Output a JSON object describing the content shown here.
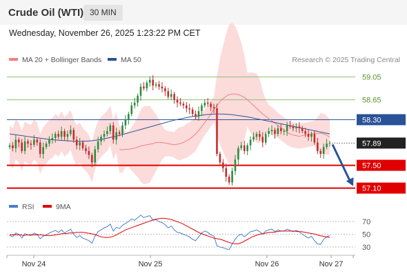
{
  "header": {
    "title": "Crude Oil (WTI)",
    "timeframe": "30 MIN",
    "timestamp": "Wednesday, November 26, 2025 1:23:22 PM CET"
  },
  "legend": {
    "items": [
      {
        "label": "MA 20 + Bollinger Bands",
        "color": "#f08080"
      },
      {
        "label": "MA 50",
        "color": "#2a5298"
      }
    ]
  },
  "credit": "Research © 2025 Trading Central",
  "chart_data": {
    "type": "candlestick",
    "y_range": [
      56.95,
      59.25
    ],
    "x_labels": [
      "Nov 24",
      "Nov 25",
      "Nov 26",
      "Nov 27"
    ],
    "last_price": 57.89,
    "levels": [
      {
        "value": 59.05,
        "label": "59.05",
        "kind": "resistance-minor",
        "color": "#8dc26f"
      },
      {
        "value": 58.65,
        "label": "58.65",
        "kind": "resistance-minor",
        "color": "#8dc26f"
      },
      {
        "value": 58.3,
        "label": "58.30",
        "kind": "pivot",
        "color": "#2a5298"
      },
      {
        "value": 57.5,
        "label": "57.50",
        "kind": "support",
        "color": "#e00000"
      },
      {
        "value": 57.1,
        "label": "57.10",
        "kind": "support",
        "color": "#e00000"
      }
    ],
    "series_close": [
      57.85,
      57.8,
      57.95,
      57.9,
      57.75,
      57.92,
      57.88,
      57.86,
      57.95,
      57.9,
      57.7,
      57.82,
      57.88,
      57.95,
      57.98,
      58.05,
      58.0,
      58.1,
      58.0,
      58.05,
      58.12,
      57.95,
      57.85,
      57.9,
      57.8,
      57.75,
      57.68,
      57.55,
      57.78,
      57.92,
      58.0,
      58.05,
      58.1,
      58.2,
      57.95,
      58.08,
      58.05,
      58.2,
      58.3,
      58.4,
      58.55,
      58.6,
      58.72,
      58.88,
      58.85,
      58.95,
      59.0,
      58.9,
      58.92,
      58.88,
      58.85,
      58.8,
      58.7,
      58.75,
      58.65,
      58.6,
      58.58,
      58.55,
      58.5,
      58.48,
      58.4,
      58.35,
      58.45,
      58.55,
      58.6,
      58.58,
      58.52,
      58.5,
      57.7,
      57.55,
      57.45,
      57.3,
      57.2,
      57.4,
      57.6,
      57.8,
      57.85,
      57.75,
      57.85,
      57.95,
      58.0,
      58.05,
      58.0,
      57.9,
      58.05,
      58.1,
      58.12,
      58.05,
      58.15,
      58.1,
      58.1,
      58.2,
      58.18,
      58.15,
      58.18,
      58.15,
      58.1,
      58.05,
      58.0,
      58.05,
      57.9,
      57.75,
      57.7,
      57.82,
      57.88,
      57.89
    ],
    "ma20": [
      57.78,
      57.77,
      57.78,
      57.78,
      57.79,
      57.8,
      57.82,
      57.84,
      57.85,
      57.86,
      57.87,
      57.88,
      57.9,
      57.9,
      57.9,
      57.89,
      57.88,
      57.87,
      57.86,
      57.87,
      57.88,
      57.9,
      57.93,
      57.96,
      58.0,
      58.05,
      58.11,
      58.18,
      58.25,
      58.32,
      58.4,
      58.48,
      58.55,
      58.62,
      58.67,
      58.71,
      58.74,
      58.75,
      58.75,
      58.74,
      58.72,
      58.69,
      58.65,
      58.6,
      58.55,
      58.5,
      58.45,
      58.4,
      58.36,
      58.32,
      58.28,
      58.24,
      58.2,
      58.16,
      58.12,
      58.08,
      58.05,
      58.03,
      58.02,
      58.01,
      58.02,
      58.03,
      58.04,
      58.05,
      58.06,
      58.06,
      58.06,
      58.05,
      58.03,
      57.99
    ],
    "ma50": [
      58.05,
      58.03,
      58.01,
      57.99,
      57.97,
      57.95,
      57.94,
      57.93,
      57.92,
      57.92,
      57.93,
      57.95,
      57.98,
      58.01,
      58.05,
      58.09,
      58.13,
      58.17,
      58.21,
      58.25,
      58.29,
      58.32,
      58.35,
      58.37,
      58.39,
      58.4,
      58.4,
      58.39,
      58.37,
      58.35,
      58.32,
      58.29,
      58.26,
      58.23,
      58.2,
      58.17,
      58.14,
      58.11,
      58.08,
      58.05
    ],
    "rsi": [
      48,
      46,
      52,
      50,
      44,
      51,
      49,
      48,
      52,
      50,
      43,
      47,
      49,
      52,
      54,
      56,
      53,
      57,
      52,
      55,
      58,
      50,
      45,
      48,
      44,
      42,
      40,
      36,
      47,
      54,
      57,
      60,
      62,
      66,
      55,
      61,
      59,
      64,
      67,
      70,
      74,
      72,
      76,
      80,
      76,
      78,
      79,
      72,
      73,
      70,
      68,
      65,
      60,
      63,
      57,
      53,
      52,
      50,
      48,
      46,
      42,
      40,
      46,
      52,
      55,
      53,
      49,
      47,
      32,
      30,
      29,
      27,
      26,
      35,
      42,
      48,
      50,
      46,
      50,
      54,
      55,
      57,
      54,
      50,
      55,
      57,
      58,
      54,
      57,
      55,
      55,
      58,
      56,
      54,
      56,
      54,
      50,
      47,
      44,
      47,
      40,
      35,
      34,
      42,
      46,
      48
    ],
    "rsi_ma": [
      49,
      49,
      49,
      49,
      48,
      49,
      49,
      49,
      49,
      49,
      48,
      48,
      48,
      49,
      50,
      51,
      51,
      52,
      52,
      53,
      53,
      53,
      52,
      51,
      50,
      48,
      46,
      45,
      45,
      46,
      48,
      51,
      54,
      57,
      59,
      61,
      63,
      65,
      67,
      69,
      71,
      73,
      74,
      75,
      75,
      74,
      73,
      71,
      69,
      67,
      64,
      61,
      58,
      55,
      52,
      50,
      48,
      46,
      44,
      43,
      42,
      40,
      38,
      36,
      35,
      35,
      37,
      40,
      43,
      46,
      48,
      50,
      51,
      52,
      53,
      53,
      54,
      55,
      55,
      55,
      55,
      55,
      54,
      54,
      53,
      52,
      51,
      50,
      48,
      47,
      46,
      45
    ],
    "rsi_levels": [
      70,
      50,
      30
    ],
    "rsi_legend": [
      {
        "label": "RSI",
        "color": "#4a7dc9"
      },
      {
        "label": "9MA",
        "color": "#e00000"
      }
    ],
    "projection": {
      "from": 57.89,
      "to": 57.1
    }
  }
}
